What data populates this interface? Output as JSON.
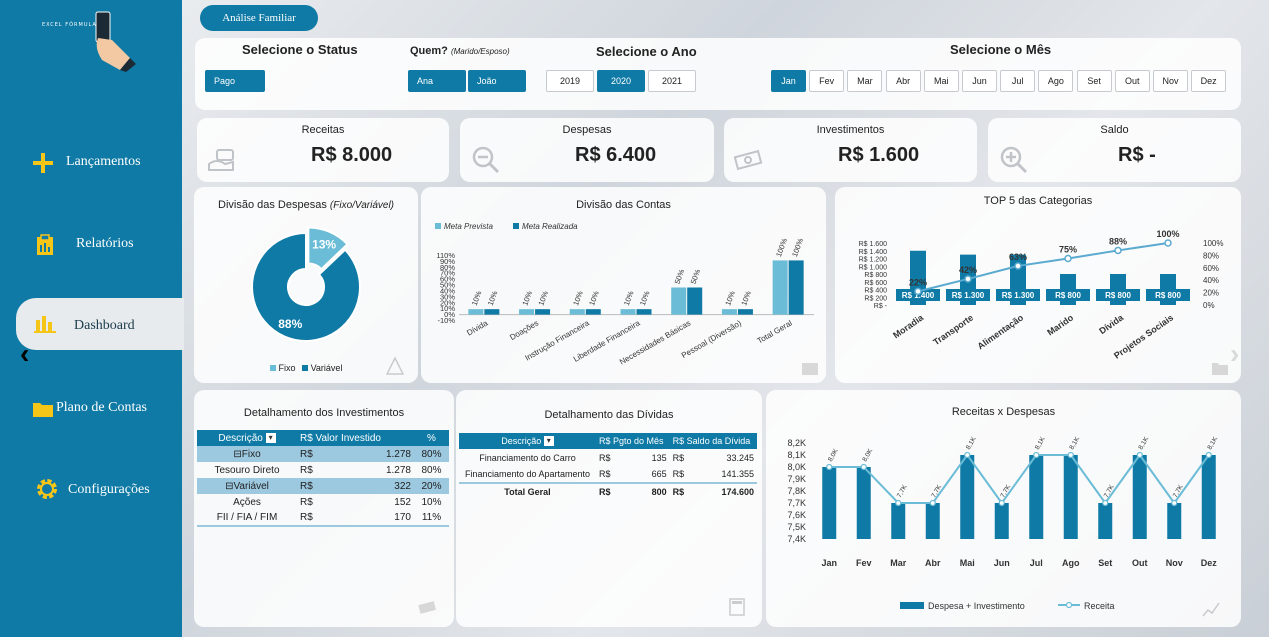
{
  "sidebar": {
    "logo_text": "EXCEL FÓRMULA",
    "items": [
      {
        "label": "Lançamentos",
        "icon": "plus-icon"
      },
      {
        "label": "Relatórios",
        "icon": "clipboard-icon"
      },
      {
        "label": "Dashboard",
        "icon": "bar-chart-icon"
      },
      {
        "label": "Plano de Contas",
        "icon": "folder-icon"
      },
      {
        "label": "Configurações",
        "icon": "gear-icon"
      }
    ]
  },
  "header": {
    "tab_label": "Análise Familiar"
  },
  "filters": {
    "status": {
      "title": "Selecione o Status",
      "options": [
        "Pago"
      ]
    },
    "who": {
      "title": "Quem?",
      "subtitle": "(Marido/Esposo)",
      "options": [
        "Ana",
        "João"
      ]
    },
    "year": {
      "title": "Selecione o Ano",
      "options": [
        "2019",
        "2020",
        "2021"
      ],
      "selected": "2020"
    },
    "month": {
      "title": "Selecione o Mês",
      "options": [
        "Jan",
        "Fev",
        "Mar",
        "Abr",
        "Mai",
        "Jun",
        "Jul",
        "Ago",
        "Set",
        "Out",
        "Nov",
        "Dez"
      ],
      "selected": "Jan"
    }
  },
  "kpis": [
    {
      "title": "Receitas",
      "value": "R$ 8.000",
      "icon": "money-hand-icon"
    },
    {
      "title": "Despesas",
      "value": "R$ 6.400",
      "icon": "zoom-out-icon"
    },
    {
      "title": "Investimentos",
      "value": "R$ 1.600",
      "icon": "cash-icon"
    },
    {
      "title": "Saldo",
      "value": "R$ -",
      "icon": "zoom-in-icon"
    }
  ],
  "donut": {
    "title": "Divisão das Despesas",
    "title_note": "(Fixo/Variável)",
    "legend": [
      "Fixo",
      "Variável"
    ]
  },
  "contas": {
    "title": "Divisão das Contas",
    "legend": [
      "Meta Prevista",
      "Meta Realizada"
    ]
  },
  "top5": {
    "title": "TOP 5 das Categorias"
  },
  "investimentos": {
    "title": "Detalhamento dos Investimentos",
    "headers": [
      "Descrição",
      "R$ Valor Investido",
      "%"
    ],
    "rows": [
      {
        "desc": "⊟Fixo",
        "cur": "R$",
        "val": "1.278",
        "pct": "80%",
        "group": true
      },
      {
        "desc": "Tesouro Direto",
        "cur": "R$",
        "val": "1.278",
        "pct": "80%",
        "group": false
      },
      {
        "desc": "⊟Variável",
        "cur": "R$",
        "val": "322",
        "pct": "20%",
        "group": true
      },
      {
        "desc": "Ações",
        "cur": "R$",
        "val": "152",
        "pct": "10%",
        "group": false
      },
      {
        "desc": "FII / FIA / FIM",
        "cur": "R$",
        "val": "170",
        "pct": "11%",
        "group": false
      }
    ]
  },
  "dividas": {
    "title": "Detalhamento das Dívidas",
    "headers": [
      "Descrição",
      "R$ Pgto do Mês",
      "R$ Saldo da Dívida"
    ],
    "rows": [
      {
        "desc": "Financiamento do Carro",
        "c1": "R$",
        "v1": "135",
        "c2": "R$",
        "v2": "33.245"
      },
      {
        "desc": "Financiamento do Apartamento",
        "c1": "R$",
        "v1": "665",
        "c2": "R$",
        "v2": "141.355"
      }
    ],
    "total": {
      "desc": "Total Geral",
      "c1": "R$",
      "v1": "800",
      "c2": "R$",
      "v2": "174.600"
    }
  },
  "receitas_despesas": {
    "title": "Receitas x Despesas"
  },
  "chart_data": [
    {
      "type": "pie",
      "title": "Divisão das Despesas (Fixo/Variável)",
      "categories": [
        "Fixo",
        "Variável"
      ],
      "values": [
        13,
        88
      ],
      "labels": [
        "13%",
        "88%"
      ],
      "colors": [
        "#6bbcd6",
        "#0e7aa5"
      ],
      "legend_position": "bottom"
    },
    {
      "type": "bar",
      "title": "Divisão das Contas",
      "categories": [
        "Dívida",
        "Doações",
        "Instrução Financeira",
        "Liberdade Financeira",
        "Necessidades Básicas",
        "Pessoal (Diversão)",
        "Total Geral"
      ],
      "series": [
        {
          "name": "Meta Prevista",
          "values": [
            10,
            10,
            10,
            10,
            50,
            10,
            100
          ],
          "color": "#6bbcd6"
        },
        {
          "name": "Meta Realizada",
          "values": [
            10,
            10,
            10,
            10,
            50,
            10,
            100
          ],
          "color": "#0e7aa5"
        }
      ],
      "data_labels": [
        "10%",
        "10%",
        "10%",
        "10%",
        "50%",
        "10%",
        "100%"
      ],
      "yticks": [
        "-10%",
        "0%",
        "10%",
        "20%",
        "30%",
        "40%",
        "50%",
        "60%",
        "70%",
        "80%",
        "90%",
        "110%"
      ],
      "ylim": [
        -10,
        110
      ],
      "legend_position": "top-left"
    },
    {
      "type": "bar",
      "title": "TOP 5 das Categorias",
      "categories": [
        "Moradia",
        "Transporte",
        "Alimentação",
        "Marido",
        "Dívida",
        "Projetos Sociais"
      ],
      "series": [
        {
          "name": "Valor",
          "values": [
            1400,
            1300,
            1300,
            800,
            800,
            800
          ],
          "labels": [
            "R$ 1.400",
            "R$ 1.300",
            "R$ 1.300",
            "R$ 800",
            "R$ 800",
            "R$ 800"
          ],
          "color": "#0e7aa5"
        },
        {
          "name": "Acumulado",
          "type": "line",
          "values": [
            22,
            42,
            63,
            75,
            88,
            100
          ],
          "labels": [
            "22%",
            "42%",
            "63%",
            "75%",
            "88%",
            "100%"
          ],
          "color": "#5aaad0"
        }
      ],
      "yticks_left": [
        "R$ -",
        "R$ 200",
        "R$ 400",
        "R$ 600",
        "R$ 800",
        "R$ 1.000",
        "R$ 1.200",
        "R$ 1.400",
        "R$ 1.600"
      ],
      "yticks_right": [
        "0%",
        "20%",
        "40%",
        "60%",
        "80%",
        "100%"
      ],
      "ylim_left": [
        0,
        1600
      ],
      "ylim_right": [
        0,
        100
      ]
    },
    {
      "type": "bar",
      "title": "Receitas x Despesas",
      "categories": [
        "Jan",
        "Fev",
        "Mar",
        "Abr",
        "Mai",
        "Jun",
        "Jul",
        "Ago",
        "Set",
        "Out",
        "Nov",
        "Dez"
      ],
      "series": [
        {
          "name": "Despesa + Investimento",
          "values": [
            8.0,
            8.0,
            7.7,
            7.7,
            8.1,
            7.7,
            8.1,
            8.1,
            7.7,
            8.1,
            7.7,
            8.1
          ],
          "color": "#0e7aa5"
        },
        {
          "name": "Receita",
          "type": "line",
          "values": [
            8.0,
            8.0,
            7.7,
            7.7,
            8.1,
            7.7,
            8.1,
            8.1,
            7.7,
            8.1,
            7.7,
            8.1
          ],
          "color": "#6bbcd6"
        }
      ],
      "data_labels": [
        "8,0K",
        "8,0K",
        "7,7K",
        "7,7K",
        "8,1K",
        "7,7K",
        "8,1K",
        "8,1K",
        "7,7K",
        "8,1K",
        "7,7K",
        "8,1K"
      ],
      "yticks": [
        "7,4K",
        "7,5K",
        "7,6K",
        "7,7K",
        "7,8K",
        "7,9K",
        "8,0K",
        "8,1K",
        "8,2K"
      ],
      "ylim": [
        7.4,
        8.2
      ],
      "legend_position": "bottom"
    }
  ]
}
